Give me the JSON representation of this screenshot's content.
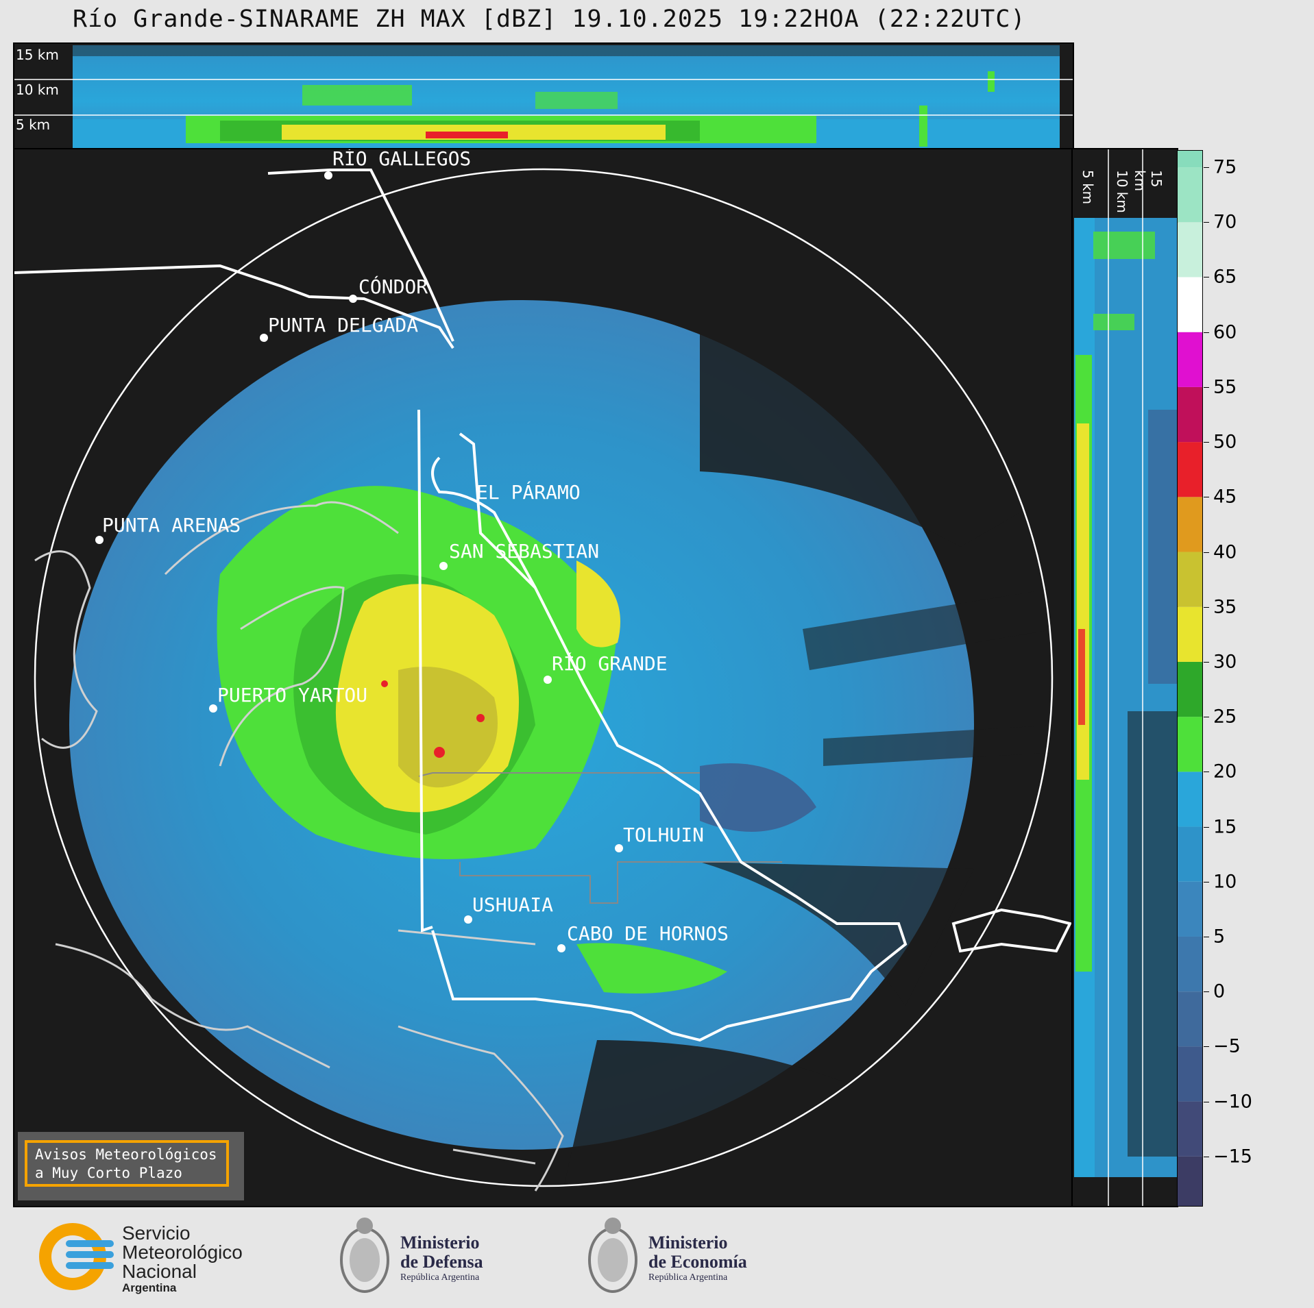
{
  "title": "Río Grande-SINARAME ZH MAX [dBZ] 19.10.2025 19:22HOA (22:22UTC)",
  "top_panel": {
    "altitude_labels": [
      "15 km",
      "10 km",
      "5 km"
    ]
  },
  "side_panel": {
    "altitude_labels": [
      "5 km",
      "10 km",
      "15 km"
    ]
  },
  "cities": [
    {
      "id": "rio-gallegos",
      "name": "RÍO GALLEGOS"
    },
    {
      "id": "condor",
      "name": "CÓNDOR"
    },
    {
      "id": "punta-delgada",
      "name": "PUNTA DELGADA"
    },
    {
      "id": "el-paramo",
      "name": "EL PÁRAMO"
    },
    {
      "id": "punta-arenas",
      "name": "PUNTA ARENAS"
    },
    {
      "id": "san-sebastian",
      "name": "SAN SEBASTIAN"
    },
    {
      "id": "rio-grande",
      "name": "RÍO GRANDE"
    },
    {
      "id": "puerto-yartou",
      "name": "PUERTO YARTOU"
    },
    {
      "id": "tolhuin",
      "name": "TOLHUIN"
    },
    {
      "id": "ushuaia",
      "name": "USHUAIA"
    },
    {
      "id": "cabo-de-hornos",
      "name": "CABO DE HORNOS"
    }
  ],
  "colorbar": {
    "unit": "dBZ",
    "ticks": [
      "75",
      "70",
      "65",
      "60",
      "55",
      "50",
      "45",
      "40",
      "35",
      "30",
      "25",
      "20",
      "15",
      "10",
      "5",
      "0",
      "−5",
      "−10",
      "−15"
    ],
    "colors": {
      "-20": "#3c3c64",
      "-15": "#414a78",
      "-10": "#3e5a8c",
      "-5": "#3f6a9c",
      "0": "#3d78ad",
      "5": "#3b86bd",
      "10": "#2e93c9",
      "15": "#2aa6da",
      "20": "#4ee03a",
      "25": "#2ea82a",
      "30": "#e8e42e",
      "35": "#c9c230",
      "40": "#e09a1e",
      "45": "#e8202a",
      "50": "#c0105a",
      "55": "#e010d0",
      "60": "#ffffff",
      "65": "#c8f0dc",
      "70": "#9ce4c4",
      "75": "#88dcbc"
    }
  },
  "aviso": {
    "line1": "Avisos Meteorológicos",
    "line2": "a Muy Corto Plazo"
  },
  "footer": {
    "smn": {
      "line1": "Servicio",
      "line2": "Meteorológico",
      "line3": "Nacional",
      "line4": "Argentina"
    },
    "defensa": {
      "line1": "Ministerio",
      "line2": "de Defensa",
      "line3": "República Argentina"
    },
    "economia": {
      "line1": "Ministerio",
      "line2": "de Economía",
      "line3": "República Argentina"
    }
  }
}
